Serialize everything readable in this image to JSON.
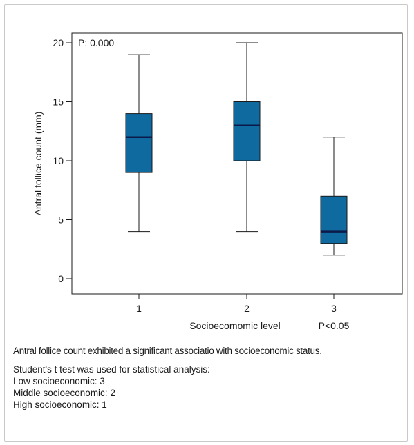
{
  "chart_data": {
    "type": "box",
    "ylabel": "Antral follice count (mm)",
    "xlabel": "Socioecomomic level",
    "ylim": [
      0,
      20
    ],
    "yticks": [
      0,
      5,
      10,
      15,
      20
    ],
    "categories": [
      "1",
      "2",
      "3"
    ],
    "boxes": [
      {
        "category": "1",
        "min": 4,
        "q1": 9,
        "median": 12,
        "q3": 14,
        "max": 19
      },
      {
        "category": "2",
        "min": 4,
        "q1": 10,
        "median": 13,
        "q3": 15,
        "max": 20
      },
      {
        "category": "3",
        "min": 2,
        "q1": 3,
        "median": 4,
        "q3": 7,
        "max": 12
      }
    ],
    "annotations": {
      "top_left": "P: 0.000",
      "bottom_right": "P<0.05"
    },
    "colors": {
      "box_fill": "#0f6aa0",
      "median_line": "#0b1a4a",
      "frame": "#1a1a1a"
    },
    "grid": false
  },
  "caption": {
    "main": "Antral follice count exhibited a significant associatio with socioeconomic status.",
    "lines": [
      "Student's t test was used for statistical analysis:",
      "Low socioeconomic: 3",
      "Middle socioeconomic: 2",
      "High socioeconomic: 1"
    ]
  }
}
